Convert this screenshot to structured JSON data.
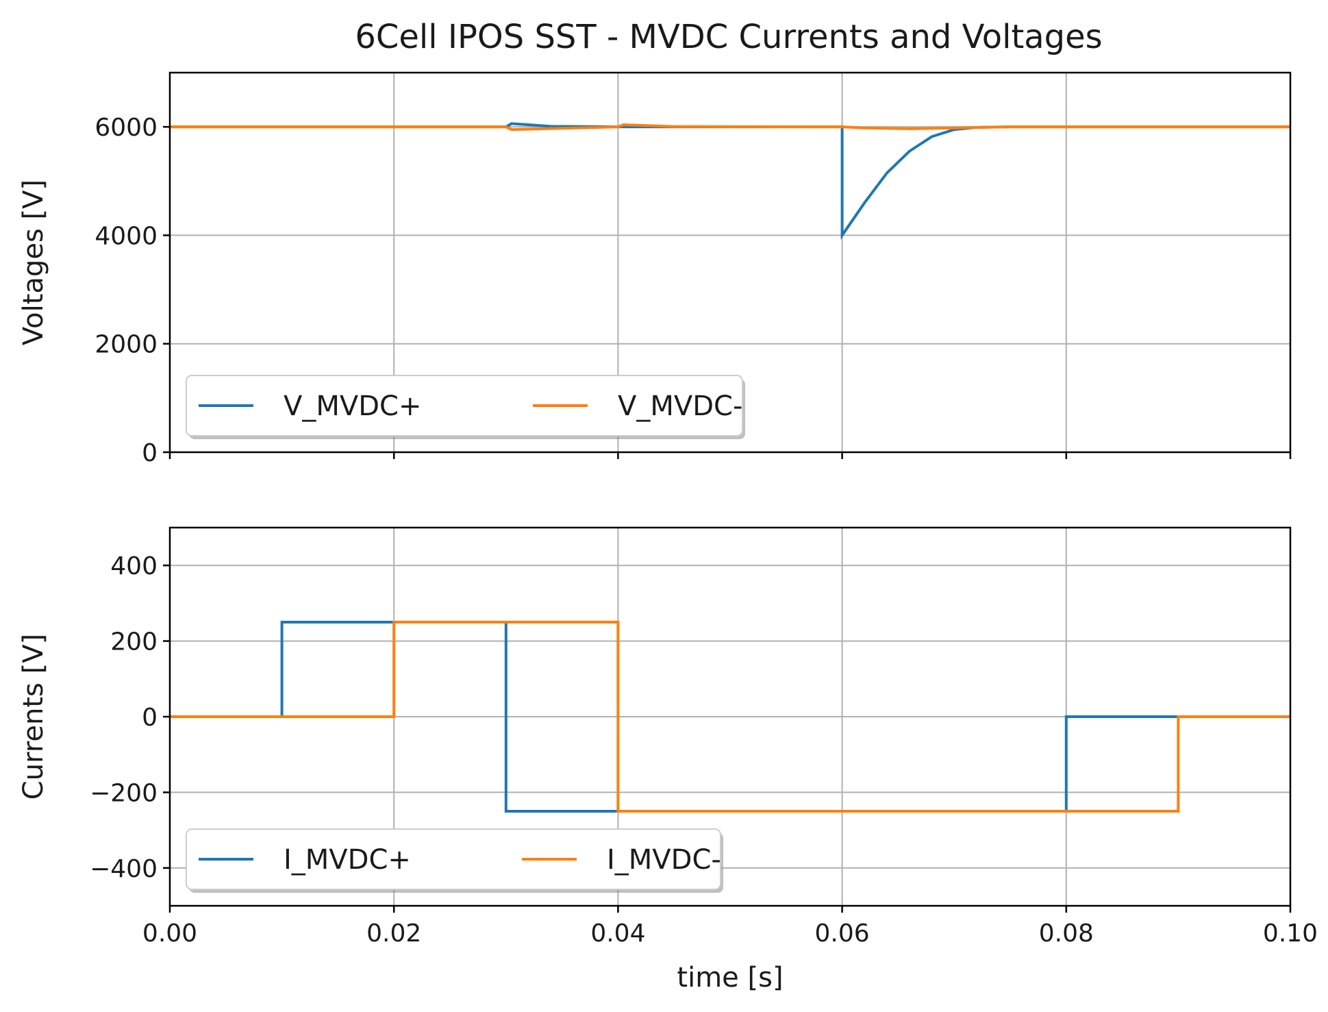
{
  "figure_title": "6Cell IPOS SST - MVDC Currents and Voltages",
  "colors": {
    "blue": "#1f77b4",
    "orange": "#ff7f0e",
    "grid": "#b0b0b0"
  },
  "chart_data": [
    {
      "type": "line",
      "title": "6Cell IPOS SST - MVDC Currents and Voltages",
      "xlabel": "",
      "ylabel": "Voltages [V]",
      "xlim": [
        0,
        0.1
      ],
      "ylim": [
        0,
        7000
      ],
      "xticks": [
        0,
        0.02,
        0.04,
        0.06,
        0.08,
        0.1
      ],
      "xtick_labels_visible": false,
      "yticks": [
        0,
        2000,
        4000,
        6000
      ],
      "ytick_labels": [
        "0",
        "2000",
        "4000",
        "6000"
      ],
      "grid": true,
      "legend": {
        "position": "lower-left",
        "columns": 2
      },
      "series": [
        {
          "name": "V_MVDC+",
          "color": "#1f77b4",
          "x": [
            0,
            0.03,
            0.0305,
            0.034,
            0.04,
            0.06,
            0.06,
            0.062,
            0.064,
            0.066,
            0.068,
            0.07,
            0.072,
            0.075,
            0.1
          ],
          "y": [
            6000,
            6000,
            6060,
            6010,
            6000,
            6000,
            4000,
            4600,
            5150,
            5550,
            5820,
            5950,
            5990,
            6000,
            6000
          ]
        },
        {
          "name": "V_MVDC-",
          "color": "#ff7f0e",
          "x": [
            0,
            0.03,
            0.0305,
            0.04,
            0.0405,
            0.045,
            0.06,
            0.062,
            0.066,
            0.07,
            0.075,
            0.1
          ],
          "y": [
            6000,
            6000,
            5950,
            6000,
            6040,
            6005,
            6000,
            5980,
            5965,
            5980,
            6000,
            6000
          ]
        }
      ]
    },
    {
      "type": "line",
      "title": "",
      "xlabel": "time [s]",
      "ylabel": "Currents [V]",
      "xlim": [
        0,
        0.1
      ],
      "ylim": [
        -500,
        500
      ],
      "xticks": [
        0,
        0.02,
        0.04,
        0.06,
        0.08,
        0.1
      ],
      "xtick_labels": [
        "0.00",
        "0.02",
        "0.04",
        "0.06",
        "0.08",
        "0.10"
      ],
      "yticks": [
        -400,
        -200,
        0,
        200,
        400
      ],
      "ytick_labels": [
        "−400",
        "−200",
        "0",
        "200",
        "400"
      ],
      "grid": true,
      "legend": {
        "position": "lower-left",
        "columns": 2
      },
      "series": [
        {
          "name": "I_MVDC+",
          "color": "#1f77b4",
          "x": [
            0,
            0.01,
            0.01,
            0.03,
            0.03,
            0.08,
            0.08,
            0.1
          ],
          "y": [
            0,
            0,
            250,
            250,
            -250,
            -250,
            0,
            0
          ]
        },
        {
          "name": "I_MVDC-",
          "color": "#ff7f0e",
          "x": [
            0,
            0.02,
            0.02,
            0.04,
            0.04,
            0.09,
            0.09,
            0.1
          ],
          "y": [
            0,
            0,
            250,
            250,
            -250,
            -250,
            0,
            0
          ]
        }
      ]
    }
  ]
}
